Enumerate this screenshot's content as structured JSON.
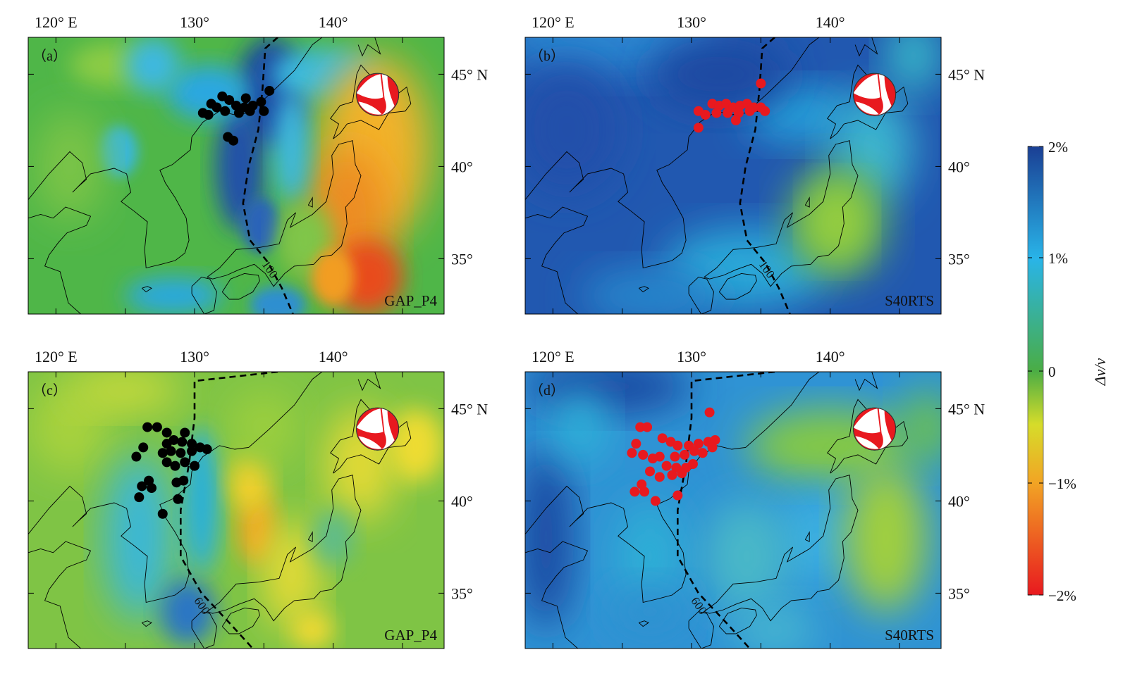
{
  "lon_labels": [
    "120° E",
    "130°",
    "140°"
  ],
  "lat_labels": [
    "45° N",
    "40°",
    "35°"
  ],
  "panels": [
    {
      "label": "（a）",
      "model": "GAP_P4",
      "contour": "100",
      "event_color": "#000000",
      "event_set": "upper",
      "field": "gap100"
    },
    {
      "label": "（b）",
      "model": "S40RTS",
      "contour": "100",
      "event_color": "#e8191f",
      "event_set": "upper",
      "field": "s40100"
    },
    {
      "label": "（c）",
      "model": "GAP_P4",
      "contour": "600",
      "event_color": "#000000",
      "event_set": "deep",
      "field": "gap600"
    },
    {
      "label": "（d）",
      "model": "S40RTS",
      "contour": "600",
      "event_color": "#e8191f",
      "event_set": "deep",
      "field": "s40600"
    }
  ],
  "colorbar": {
    "ticks": [
      "2%",
      "1%",
      "0",
      "−1%",
      "−2%"
    ],
    "title": "Δv/v",
    "colors": {
      "pos2": "#1a3f94",
      "pos1": "#29b4e8",
      "zero": "#4aad45",
      "neg1": "#f2a424",
      "neg2": "#e8191f"
    }
  }
}
